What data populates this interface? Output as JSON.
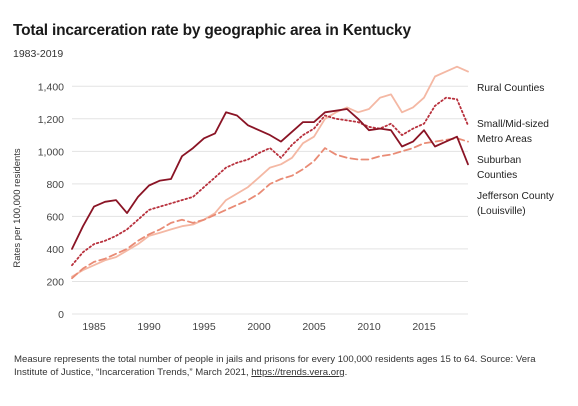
{
  "chart_data": {
    "type": "line",
    "title": "Total incarceration rate by geographic area in Kentucky",
    "subtitle": "1983-2019",
    "ylabel": "Rates per 100,000 residents",
    "xlabel": "",
    "xlim": [
      1983,
      2019
    ],
    "ylim": [
      0,
      1500
    ],
    "x_ticks": [
      1985,
      1990,
      1995,
      2000,
      2005,
      2010,
      2015
    ],
    "y_ticks": [
      0,
      200,
      400,
      600,
      800,
      1000,
      1200,
      1400
    ],
    "y_tick_labels": [
      "0",
      "200",
      "400",
      "600",
      "800",
      "1,000",
      "1,200",
      "1,400"
    ],
    "grid": "horizontal",
    "legend": "right-side direct labels",
    "x": [
      1983,
      1984,
      1985,
      1986,
      1987,
      1988,
      1989,
      1990,
      1991,
      1992,
      1993,
      1994,
      1995,
      1996,
      1997,
      1998,
      1999,
      2000,
      2001,
      2002,
      2003,
      2004,
      2005,
      2006,
      2007,
      2008,
      2009,
      2010,
      2011,
      2012,
      2013,
      2014,
      2015,
      2016,
      2017,
      2018,
      2019
    ],
    "series": [
      {
        "name": "Rural Counties",
        "label_lines": [
          "Rural Counties"
        ],
        "color": "#f4b8a4",
        "style": "solid",
        "values": [
          230,
          270,
          300,
          330,
          350,
          390,
          430,
          480,
          500,
          520,
          540,
          550,
          580,
          620,
          700,
          740,
          780,
          840,
          900,
          920,
          960,
          1050,
          1090,
          1200,
          1240,
          1270,
          1240,
          1260,
          1330,
          1350,
          1240,
          1270,
          1330,
          1460,
          1490,
          1520,
          1490
        ]
      },
      {
        "name": "Small/Mid-sized Metro Areas",
        "label_lines": [
          "Small/Mid-sized",
          "Metro Areas"
        ],
        "color": "#b8313d",
        "style": "dotted",
        "values": [
          300,
          380,
          430,
          450,
          480,
          520,
          580,
          640,
          660,
          680,
          700,
          720,
          780,
          840,
          900,
          930,
          950,
          990,
          1020,
          960,
          1040,
          1100,
          1140,
          1220,
          1200,
          1190,
          1180,
          1150,
          1140,
          1170,
          1100,
          1140,
          1170,
          1280,
          1330,
          1320,
          1160
        ]
      },
      {
        "name": "Suburban Counties",
        "label_lines": [
          "Suburban",
          "Counties"
        ],
        "color": "#e98b75",
        "style": "dashed",
        "values": [
          220,
          280,
          320,
          340,
          370,
          400,
          450,
          490,
          520,
          560,
          580,
          560,
          580,
          610,
          640,
          670,
          700,
          740,
          800,
          830,
          850,
          890,
          940,
          1020,
          980,
          960,
          950,
          950,
          970,
          980,
          1000,
          1020,
          1050,
          1060,
          1070,
          1080,
          1060
        ]
      },
      {
        "name": "Jefferson County (Louisville)",
        "label_lines": [
          "Jefferson County",
          "(Louisville)"
        ],
        "color": "#8a1425",
        "style": "solid",
        "values": [
          400,
          540,
          660,
          690,
          700,
          620,
          720,
          790,
          820,
          830,
          970,
          1020,
          1080,
          1110,
          1240,
          1220,
          1160,
          1130,
          1100,
          1060,
          1120,
          1180,
          1180,
          1240,
          1250,
          1260,
          1200,
          1130,
          1140,
          1130,
          1030,
          1060,
          1130,
          1030,
          1060,
          1090,
          920
        ]
      }
    ]
  },
  "note": {
    "text": "Measure represents the total number of people in jails and prisons for every 100,000 residents ages 15 to 64. Source: Vera Institute of Justice, “Incarceration Trends,” March 2021, ",
    "link_text": "https://trends.vera.org",
    "end": "."
  }
}
